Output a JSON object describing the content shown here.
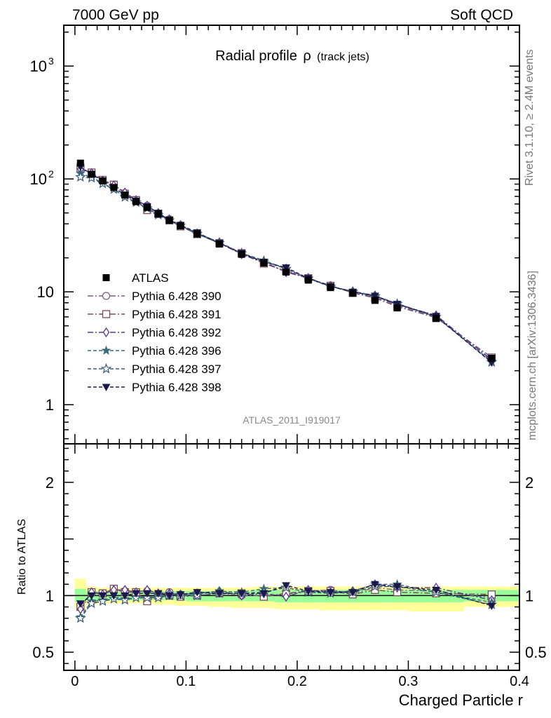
{
  "header": {
    "left": "7000 GeV pp",
    "right": "Soft QCD"
  },
  "side": {
    "rivet": "Rivet 3.1.10, ≥ 2.4M events",
    "mcplots": "mcplots.cern.ch [arXiv:1306.3436]"
  },
  "colors": {
    "atlas": "#000000",
    "band_inner": "#99ff99",
    "band_outer": "#ffff99",
    "s390": "#7f5a8a",
    "s391": "#7a4a5a",
    "s392": "#5a3a8a",
    "s396": "#3a6a7a",
    "s397": "#3a5a7a",
    "s398": "#1a1a4a"
  },
  "chart_data": [
    {
      "type": "line",
      "title": "Radial profile",
      "title_symbol": "ρ",
      "title_suffix": "(track jets)",
      "watermark": "ATLAS_2011_I919017",
      "xlim": [
        -0.01,
        0.4
      ],
      "ylim": [
        0.45,
        2300
      ],
      "yscale": "log",
      "y_ticks": [
        {
          "v": 1,
          "label": "1"
        },
        {
          "v": 10,
          "label": "10"
        },
        {
          "v": 100,
          "label": "10",
          "exp": "2"
        },
        {
          "v": 1000,
          "label": "10",
          "exp": "3"
        }
      ],
      "legend_position": "lower-left",
      "x": [
        0.005,
        0.015,
        0.025,
        0.035,
        0.045,
        0.055,
        0.065,
        0.075,
        0.085,
        0.095,
        0.11,
        0.13,
        0.15,
        0.17,
        0.19,
        0.21,
        0.23,
        0.25,
        0.27,
        0.29,
        0.325,
        0.375
      ],
      "data": {
        "name": "ATLAS",
        "values": [
          138,
          110,
          96,
          84,
          72,
          63,
          56,
          49,
          43,
          38.5,
          32.5,
          26.5,
          21.5,
          18,
          15,
          12.7,
          10.9,
          9.7,
          8.4,
          7.2,
          5.8,
          2.58
        ]
      },
      "series": [
        {
          "name": "Pythia 6.428 390",
          "values": [
            126,
            112,
            97,
            88,
            75,
            64,
            58,
            49,
            44,
            39,
            33,
            27,
            21.5,
            18,
            15.2,
            13.1,
            11.4,
            9.8,
            9.0,
            7.6,
            6.0,
            2.52
          ]
        },
        {
          "name": "Pythia 6.428 391",
          "values": [
            124,
            114,
            98,
            89,
            74,
            65,
            53,
            49,
            43,
            38,
            32.5,
            27,
            22,
            17.8,
            15.3,
            13.2,
            11.3,
            9.8,
            8.8,
            7.4,
            5.9,
            2.62
          ]
        },
        {
          "name": "Pythia 6.428 392",
          "values": [
            122,
            113,
            97,
            88,
            76,
            65,
            58,
            50,
            44,
            39,
            33,
            27.5,
            21.5,
            18.4,
            14.9,
            13.3,
            11.2,
            10.1,
            9.3,
            7.7,
            6.2,
            2.48
          ]
        },
        {
          "name": "Pythia 6.428 396",
          "values": [
            112,
            104,
            92,
            81,
            70,
            62,
            55,
            49,
            43,
            38.5,
            33,
            27.5,
            22,
            19,
            16,
            13.1,
            11.2,
            10.1,
            9.2,
            7.9,
            6.0,
            2.42
          ]
        },
        {
          "name": "Pythia 6.428 397",
          "values": [
            104,
            102,
            91,
            81,
            69,
            62,
            55,
            48,
            43,
            38.5,
            32.5,
            27,
            22,
            18.5,
            16,
            13.1,
            11.1,
            10.0,
            9.1,
            7.8,
            6.0,
            2.38
          ]
        },
        {
          "name": "Pythia 6.428 398",
          "values": [
            128,
            110,
            96,
            84,
            72,
            64,
            57,
            50,
            43,
            39,
            33.5,
            27,
            22,
            18.4,
            16.4,
            13.2,
            11.2,
            10.0,
            9.2,
            7.8,
            6.1,
            2.36
          ]
        }
      ]
    },
    {
      "type": "line",
      "ylabel": "Ratio to ATLAS",
      "xlabel": "Charged Particle r",
      "xlim": [
        -0.01,
        0.4
      ],
      "ylim": [
        0.34,
        2.34
      ],
      "y_ticks": [
        0.5,
        1,
        2
      ],
      "x_ticks": [
        {
          "v": 0,
          "label": "0"
        },
        {
          "v": 0.1,
          "label": "0.1"
        },
        {
          "v": 0.2,
          "label": "0.2"
        },
        {
          "v": 0.3,
          "label": "0.3"
        },
        {
          "v": 0.4,
          "label": "0.4"
        }
      ],
      "band_edges": [
        0,
        0.01,
        0.02,
        0.03,
        0.04,
        0.05,
        0.06,
        0.07,
        0.08,
        0.09,
        0.1,
        0.12,
        0.14,
        0.16,
        0.18,
        0.2,
        0.22,
        0.24,
        0.26,
        0.28,
        0.3,
        0.35,
        0.4
      ],
      "band_outer": [
        [
          0.88,
          1.15
        ],
        [
          0.92,
          1.08
        ],
        [
          0.93,
          1.07
        ],
        [
          0.93,
          1.07
        ],
        [
          0.93,
          1.07
        ],
        [
          0.93,
          1.07
        ],
        [
          0.93,
          1.07
        ],
        [
          0.92,
          1.07
        ],
        [
          0.92,
          1.07
        ],
        [
          0.91,
          1.07
        ],
        [
          0.91,
          1.07
        ],
        [
          0.9,
          1.07
        ],
        [
          0.89,
          1.07
        ],
        [
          0.89,
          1.08
        ],
        [
          0.88,
          1.08
        ],
        [
          0.88,
          1.08
        ],
        [
          0.87,
          1.08
        ],
        [
          0.87,
          1.08
        ],
        [
          0.87,
          1.08
        ],
        [
          0.87,
          1.08
        ],
        [
          0.86,
          1.08
        ],
        [
          0.9,
          1.08
        ]
      ],
      "band_inner": [
        [
          0.94,
          1.06
        ],
        [
          0.96,
          1.04
        ],
        [
          0.96,
          1.04
        ],
        [
          0.96,
          1.04
        ],
        [
          0.96,
          1.04
        ],
        [
          0.96,
          1.04
        ],
        [
          0.96,
          1.04
        ],
        [
          0.96,
          1.04
        ],
        [
          0.96,
          1.04
        ],
        [
          0.96,
          1.04
        ],
        [
          0.95,
          1.04
        ],
        [
          0.95,
          1.04
        ],
        [
          0.95,
          1.04
        ],
        [
          0.95,
          1.05
        ],
        [
          0.94,
          1.05
        ],
        [
          0.94,
          1.05
        ],
        [
          0.94,
          1.05
        ],
        [
          0.94,
          1.05
        ],
        [
          0.94,
          1.05
        ],
        [
          0.94,
          1.05
        ],
        [
          0.94,
          1.05
        ],
        [
          0.95,
          1.05
        ]
      ],
      "series": [
        {
          "name": "Pythia 6.428 390",
          "values": [
            0.92,
            1.02,
            1.02,
            1.05,
            1.04,
            1.03,
            1.04,
            1.01,
            1.03,
            1.01,
            1.02,
            1.02,
            1.0,
            1.0,
            1.01,
            1.04,
            1.05,
            1.02,
            1.07,
            1.05,
            1.04,
            0.98
          ]
        },
        {
          "name": "Pythia 6.428 391",
          "values": [
            0.9,
            1.03,
            1.02,
            1.06,
            1.03,
            1.03,
            0.95,
            1.0,
            1.0,
            0.99,
            1.0,
            1.02,
            1.02,
            0.99,
            1.02,
            1.04,
            1.04,
            1.01,
            1.05,
            1.03,
            1.02,
            1.01
          ]
        },
        {
          "name": "Pythia 6.428 392",
          "values": [
            0.88,
            1.03,
            1.01,
            1.05,
            1.05,
            1.03,
            1.05,
            1.02,
            1.02,
            1.01,
            1.02,
            1.04,
            1.0,
            1.02,
            0.99,
            1.05,
            1.03,
            1.04,
            1.1,
            1.07,
            1.07,
            0.96
          ]
        },
        {
          "name": "Pythia 6.428 396",
          "values": [
            0.81,
            0.95,
            0.96,
            0.97,
            0.97,
            0.98,
            0.98,
            1.0,
            1.0,
            1.0,
            1.02,
            1.04,
            1.03,
            1.06,
            1.07,
            1.03,
            1.03,
            1.04,
            1.1,
            1.1,
            1.03,
            0.94
          ]
        },
        {
          "name": "Pythia 6.428 397",
          "values": [
            0.8,
            0.93,
            0.95,
            0.97,
            0.96,
            0.98,
            0.98,
            0.98,
            1.0,
            1.0,
            1.0,
            1.02,
            1.02,
            1.03,
            1.07,
            1.03,
            1.02,
            1.03,
            1.08,
            1.08,
            1.03,
            0.92
          ]
        },
        {
          "name": "Pythia 6.428 398",
          "values": [
            0.93,
            1.0,
            1.0,
            1.0,
            1.0,
            1.02,
            1.02,
            1.02,
            1.0,
            1.01,
            1.03,
            1.02,
            1.02,
            1.02,
            1.09,
            1.04,
            1.03,
            1.03,
            1.1,
            1.08,
            1.05,
            0.91
          ]
        }
      ]
    }
  ]
}
